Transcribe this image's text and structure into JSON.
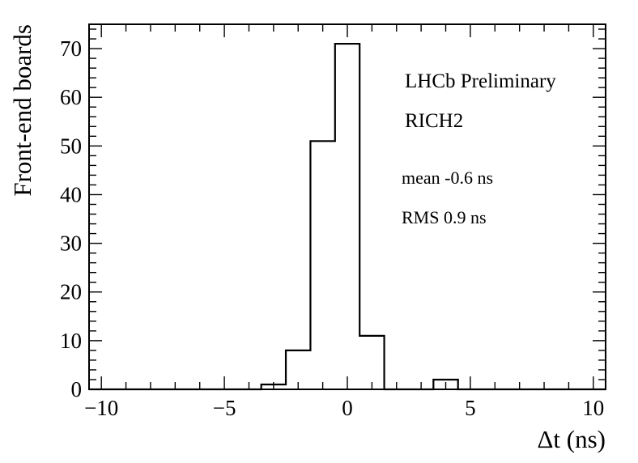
{
  "chart_data": {
    "type": "bar",
    "subtype": "histogram",
    "xlabel": "Δt (ns)",
    "ylabel": "Front-end boards",
    "xlim": [
      -10.5,
      10.5
    ],
    "ylim": [
      0,
      75
    ],
    "bin_width": 1,
    "x_ticks": [
      -10,
      -5,
      0,
      5,
      10
    ],
    "y_ticks": [
      0,
      10,
      20,
      30,
      40,
      50,
      60,
      70
    ],
    "x_tick_labels": [
      "−10",
      "−5",
      "0",
      "5",
      "10"
    ],
    "y_tick_labels": [
      "0",
      "10",
      "20",
      "30",
      "40",
      "50",
      "60",
      "70"
    ],
    "bins": [
      {
        "low": -3.5,
        "high": -2.5,
        "count": 1
      },
      {
        "low": -2.5,
        "high": -1.5,
        "count": 8
      },
      {
        "low": -1.5,
        "high": -0.5,
        "count": 51
      },
      {
        "low": -0.5,
        "high": 0.5,
        "count": 71
      },
      {
        "low": 0.5,
        "high": 1.5,
        "count": 11
      },
      {
        "low": 3.5,
        "high": 4.5,
        "count": 2
      }
    ],
    "annotations": {
      "experiment": "LHCb Preliminary",
      "detector": "RICH2",
      "mean": "mean -0.6 ns",
      "rms": "RMS 0.9 ns"
    },
    "grid": false,
    "line_color": "#000000"
  }
}
